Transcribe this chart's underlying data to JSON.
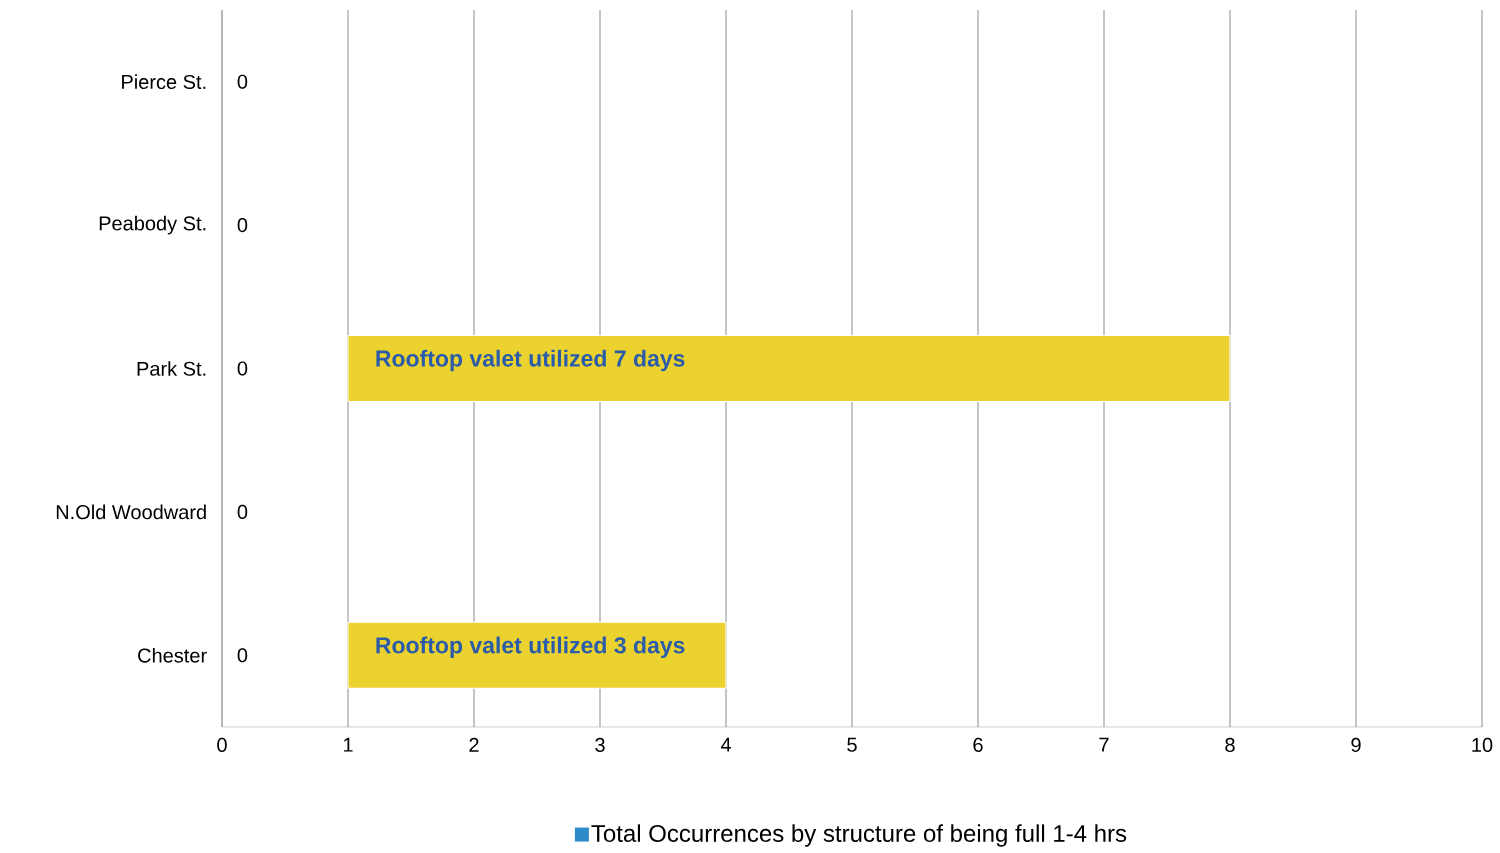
{
  "chart_data": {
    "type": "bar",
    "orientation": "horizontal",
    "categories": [
      "Pierce St.",
      "Peabody St.",
      "Park St.",
      "N.Old Woodward",
      "Chester"
    ],
    "series": [
      {
        "name": "Total Occurrences by structure of being full 1-4 hrs",
        "color": "#2e8bc9",
        "values": [
          0,
          0,
          0,
          0,
          0
        ],
        "value_labels": [
          "0",
          "0",
          "0",
          "0",
          "0"
        ]
      },
      {
        "color": "#ecd22e",
        "values": [
          null,
          null,
          7,
          null,
          3
        ],
        "base": [
          null,
          null,
          1,
          null,
          1
        ]
      }
    ],
    "annotations": [
      {
        "text": "Rooftop valet utilized 7 days",
        "x": 1,
        "y": "Park St."
      },
      {
        "text": "Rooftop valet utilized 3 days",
        "x": 1,
        "y": "Chester"
      }
    ],
    "xlim": [
      0,
      10
    ],
    "xticks": [
      0,
      1,
      2,
      3,
      4,
      5,
      6,
      7,
      8,
      9,
      10
    ],
    "grid": "x",
    "legend": "bottom"
  }
}
